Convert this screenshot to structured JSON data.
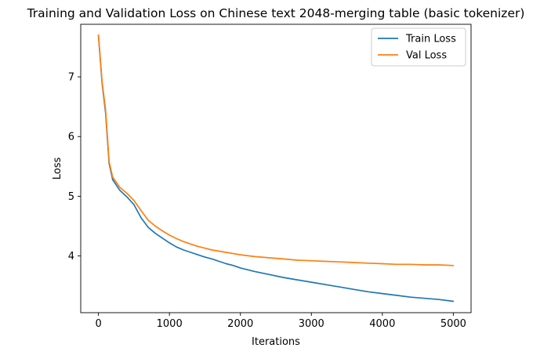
{
  "chart_data": {
    "type": "line",
    "title": "Training and Validation Loss on Chinese text 2048-merging table (basic tokenizer)",
    "xlabel": "Iterations",
    "ylabel": "Loss",
    "xlim": [
      -250,
      5250
    ],
    "ylim": [
      3.05,
      7.88
    ],
    "xticks": [
      0,
      1000,
      2000,
      3000,
      4000,
      5000
    ],
    "yticks": [
      4,
      5,
      6,
      7
    ],
    "grid": false,
    "legend_position": "top-right",
    "x": [
      0,
      50,
      100,
      150,
      200,
      300,
      400,
      500,
      600,
      700,
      800,
      900,
      1000,
      1100,
      1200,
      1300,
      1400,
      1500,
      1600,
      1700,
      1800,
      1900,
      2000,
      2200,
      2400,
      2600,
      2800,
      3000,
      3200,
      3400,
      3600,
      3800,
      4000,
      4200,
      4400,
      4600,
      4800,
      5000
    ],
    "series": [
      {
        "name": "Train Loss",
        "color": "#1f77b4",
        "values": [
          7.7,
          6.9,
          6.4,
          5.55,
          5.28,
          5.1,
          4.99,
          4.86,
          4.64,
          4.48,
          4.38,
          4.3,
          4.22,
          4.15,
          4.1,
          4.06,
          4.02,
          3.98,
          3.95,
          3.91,
          3.87,
          3.84,
          3.8,
          3.74,
          3.69,
          3.64,
          3.6,
          3.56,
          3.52,
          3.48,
          3.44,
          3.4,
          3.37,
          3.34,
          3.31,
          3.29,
          3.27,
          3.24
        ]
      },
      {
        "name": "Val Loss",
        "color": "#ff7f0e",
        "values": [
          7.7,
          6.92,
          6.45,
          5.58,
          5.32,
          5.15,
          5.05,
          4.93,
          4.76,
          4.6,
          4.5,
          4.42,
          4.35,
          4.29,
          4.24,
          4.2,
          4.16,
          4.13,
          4.1,
          4.08,
          4.06,
          4.04,
          4.02,
          3.99,
          3.97,
          3.95,
          3.93,
          3.92,
          3.91,
          3.9,
          3.89,
          3.88,
          3.87,
          3.86,
          3.86,
          3.85,
          3.85,
          3.84
        ]
      }
    ]
  }
}
